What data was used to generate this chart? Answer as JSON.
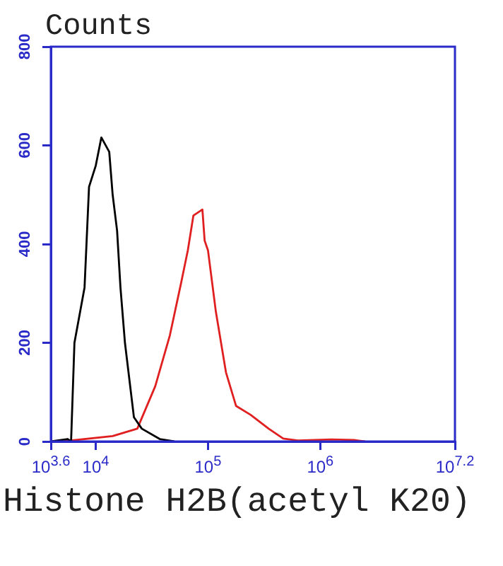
{
  "chart_data": {
    "type": "line",
    "ylabel": "Counts",
    "xlabel": "Histone H2B(acetyl K20)",
    "log": "x",
    "marker": "none",
    "xlim": [
      3981,
      15848932
    ],
    "xticks": [
      {
        "value": 3981,
        "label": "10$^{3.6}$"
      },
      {
        "value": 10000,
        "label": "10$^{4}$"
      },
      {
        "value": 100000,
        "label": "10$^{5}$"
      },
      {
        "value": 1000000,
        "label": "10$^{6}$"
      },
      {
        "value": 15848932,
        "label": "10$^{7.2}$"
      }
    ],
    "ylim": [
      0,
      800
    ],
    "yticks": [
      0,
      200,
      400,
      600,
      800
    ],
    "series": [
      {
        "color": "#000000",
        "x": [
          3981,
          5623,
          6026,
          6457,
          7943,
          8710,
          10000,
          11220,
          13183,
          14125,
          15488,
          16596,
          18197,
          21878,
          25704,
          37154,
          50119
        ],
        "values": [
          0,
          5,
          0,
          200,
          312,
          516,
          559,
          616,
          587,
          501,
          427,
          312,
          200,
          49,
          26,
          5,
          0
        ]
      },
      {
        "color": "#e02020",
        "x": [
          5012,
          14125,
          23442,
          33884,
          45709,
          57544,
          66069,
          74131,
          89125,
          93325,
          100000,
          117490,
          144544,
          177828,
          239883,
          346737,
          467735,
          630957,
          1258925,
          1995262,
          2511886
        ],
        "values": [
          0,
          11,
          26,
          112,
          215,
          321,
          387,
          458,
          470,
          407,
          387,
          263,
          140,
          72,
          54,
          26,
          6,
          2,
          4,
          3,
          0
        ]
      }
    ]
  }
}
